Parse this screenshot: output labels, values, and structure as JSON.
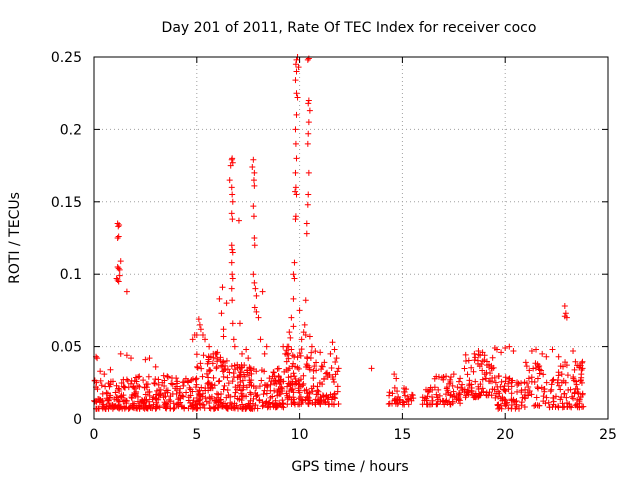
{
  "chart_data": {
    "type": "scatter",
    "title": "Day 201 of 2011, Rate Of TEC Index for receiver coco",
    "xlabel": "GPS time / hours",
    "ylabel": "ROTI / TECUs",
    "xlim": [
      0,
      25
    ],
    "ylim": [
      0,
      0.25
    ],
    "grid": true,
    "x_ticks": [
      0,
      5,
      10,
      15,
      20,
      25
    ],
    "x_tick_labels": [
      "0",
      "5",
      "10",
      "15",
      "20",
      "25"
    ],
    "y_ticks": [
      0,
      0.05,
      0.1,
      0.15,
      0.2,
      0.25
    ],
    "y_tick_labels": [
      "0",
      "0.05",
      "0.1",
      "0.15",
      "0.2",
      "0.25"
    ],
    "marker": "plus",
    "marker_color": "#ff0000",
    "dense_regions": [
      {
        "x_range": [
          0.0,
          1.5
        ],
        "y_range": [
          0.007,
          0.028
        ],
        "count": 90
      },
      {
        "x_range": [
          1.5,
          5.0
        ],
        "y_range": [
          0.007,
          0.03
        ],
        "count": 200
      },
      {
        "x_range": [
          5.0,
          6.5
        ],
        "y_range": [
          0.007,
          0.045
        ],
        "count": 120
      },
      {
        "x_range": [
          6.5,
          8.0
        ],
        "y_range": [
          0.007,
          0.04
        ],
        "count": 110
      },
      {
        "x_range": [
          8.0,
          9.3
        ],
        "y_range": [
          0.008,
          0.035
        ],
        "count": 80
      },
      {
        "x_range": [
          9.3,
          10.8
        ],
        "y_range": [
          0.01,
          0.05
        ],
        "count": 110
      },
      {
        "x_range": [
          10.8,
          11.9
        ],
        "y_range": [
          0.01,
          0.04
        ],
        "count": 60
      },
      {
        "x_range": [
          14.3,
          16.5
        ],
        "y_range": [
          0.01,
          0.022
        ],
        "count": 60
      },
      {
        "x_range": [
          16.5,
          18.0
        ],
        "y_range": [
          0.01,
          0.03
        ],
        "count": 60
      },
      {
        "x_range": [
          18.0,
          19.5
        ],
        "y_range": [
          0.015,
          0.045
        ],
        "count": 80
      },
      {
        "x_range": [
          19.5,
          21.0
        ],
        "y_range": [
          0.007,
          0.03
        ],
        "count": 70
      },
      {
        "x_range": [
          21.0,
          23.8
        ],
        "y_range": [
          0.008,
          0.04
        ],
        "count": 130
      }
    ],
    "points": [
      [
        0.1,
        0.043
      ],
      [
        0.15,
        0.042
      ],
      [
        0.3,
        0.033
      ],
      [
        0.5,
        0.031
      ],
      [
        0.8,
        0.034
      ],
      [
        1.15,
        0.135
      ],
      [
        1.18,
        0.133
      ],
      [
        1.2,
        0.126
      ],
      [
        1.22,
        0.134
      ],
      [
        1.15,
        0.125
      ],
      [
        1.15,
        0.105
      ],
      [
        1.2,
        0.104
      ],
      [
        1.25,
        0.103
      ],
      [
        1.3,
        0.109
      ],
      [
        1.1,
        0.097
      ],
      [
        1.15,
        0.096
      ],
      [
        1.2,
        0.095
      ],
      [
        1.25,
        0.099
      ],
      [
        1.6,
        0.088
      ],
      [
        1.3,
        0.045
      ],
      [
        1.6,
        0.044
      ],
      [
        1.8,
        0.042
      ],
      [
        2.5,
        0.041
      ],
      [
        2.7,
        0.042
      ],
      [
        3.0,
        0.036
      ],
      [
        4.8,
        0.055
      ],
      [
        4.9,
        0.058
      ],
      [
        5.0,
        0.058
      ],
      [
        5.1,
        0.069
      ],
      [
        5.15,
        0.065
      ],
      [
        5.2,
        0.062
      ],
      [
        5.3,
        0.058
      ],
      [
        5.4,
        0.055
      ],
      [
        5.6,
        0.05
      ],
      [
        5.8,
        0.045
      ],
      [
        6.0,
        0.046
      ],
      [
        6.1,
        0.083
      ],
      [
        6.2,
        0.073
      ],
      [
        6.25,
        0.091
      ],
      [
        6.3,
        0.062
      ],
      [
        6.45,
        0.08
      ],
      [
        6.3,
        0.057
      ],
      [
        6.6,
        0.165
      ],
      [
        6.65,
        0.175
      ],
      [
        6.7,
        0.179
      ],
      [
        6.72,
        0.18
      ],
      [
        6.75,
        0.177
      ],
      [
        6.7,
        0.16
      ],
      [
        6.72,
        0.155
      ],
      [
        6.75,
        0.15
      ],
      [
        6.7,
        0.142
      ],
      [
        6.73,
        0.138
      ],
      [
        6.7,
        0.12
      ],
      [
        6.72,
        0.117
      ],
      [
        6.75,
        0.115
      ],
      [
        6.7,
        0.108
      ],
      [
        6.72,
        0.1
      ],
      [
        6.75,
        0.097
      ],
      [
        6.7,
        0.09
      ],
      [
        6.72,
        0.082
      ],
      [
        6.75,
        0.066
      ],
      [
        6.8,
        0.055
      ],
      [
        6.85,
        0.05
      ],
      [
        7.05,
        0.137
      ],
      [
        7.1,
        0.066
      ],
      [
        7.2,
        0.045
      ],
      [
        7.4,
        0.048
      ],
      [
        7.5,
        0.042
      ],
      [
        7.7,
        0.174
      ],
      [
        7.75,
        0.179
      ],
      [
        7.8,
        0.17
      ],
      [
        7.78,
        0.165
      ],
      [
        7.8,
        0.161
      ],
      [
        7.75,
        0.147
      ],
      [
        7.78,
        0.14
      ],
      [
        7.8,
        0.125
      ],
      [
        7.82,
        0.12
      ],
      [
        7.75,
        0.1
      ],
      [
        7.8,
        0.094
      ],
      [
        7.85,
        0.09
      ],
      [
        7.9,
        0.085
      ],
      [
        7.82,
        0.077
      ],
      [
        7.9,
        0.074
      ],
      [
        8.0,
        0.07
      ],
      [
        8.1,
        0.055
      ],
      [
        8.2,
        0.088
      ],
      [
        8.3,
        0.045
      ],
      [
        8.4,
        0.05
      ],
      [
        9.2,
        0.05
      ],
      [
        9.3,
        0.045
      ],
      [
        9.4,
        0.05
      ],
      [
        9.5,
        0.06
      ],
      [
        9.55,
        0.056
      ],
      [
        9.6,
        0.048
      ],
      [
        9.7,
        0.064
      ],
      [
        9.6,
        0.07
      ],
      [
        9.7,
        0.083
      ],
      [
        9.75,
        0.097
      ],
      [
        9.7,
        0.1
      ],
      [
        9.75,
        0.108
      ],
      [
        9.8,
        0.138
      ],
      [
        9.82,
        0.14
      ],
      [
        9.85,
        0.155
      ],
      [
        9.78,
        0.157
      ],
      [
        9.82,
        0.16
      ],
      [
        9.8,
        0.17
      ],
      [
        9.85,
        0.18
      ],
      [
        9.82,
        0.19
      ],
      [
        9.8,
        0.2
      ],
      [
        9.85,
        0.21
      ],
      [
        9.9,
        0.222
      ],
      [
        9.85,
        0.225
      ],
      [
        9.8,
        0.234
      ],
      [
        9.82,
        0.245
      ],
      [
        9.85,
        0.248
      ],
      [
        9.9,
        0.25
      ],
      [
        9.95,
        0.243
      ],
      [
        9.85,
        0.24
      ],
      [
        10.0,
        0.075
      ],
      [
        10.1,
        0.055
      ],
      [
        10.2,
        0.06
      ],
      [
        10.25,
        0.065
      ],
      [
        10.3,
        0.058
      ],
      [
        10.3,
        0.082
      ],
      [
        10.35,
        0.128
      ],
      [
        10.35,
        0.135
      ],
      [
        10.4,
        0.148
      ],
      [
        10.42,
        0.155
      ],
      [
        10.45,
        0.17
      ],
      [
        10.4,
        0.19
      ],
      [
        10.42,
        0.197
      ],
      [
        10.45,
        0.205
      ],
      [
        10.5,
        0.213
      ],
      [
        10.42,
        0.218
      ],
      [
        10.45,
        0.22
      ],
      [
        10.4,
        0.248
      ],
      [
        10.45,
        0.249
      ],
      [
        10.5,
        0.057
      ],
      [
        10.6,
        0.05
      ],
      [
        11.0,
        0.046
      ],
      [
        11.5,
        0.045
      ],
      [
        11.6,
        0.053
      ],
      [
        11.7,
        0.048
      ],
      [
        11.8,
        0.042
      ],
      [
        11.9,
        0.035
      ],
      [
        13.5,
        0.035
      ],
      [
        14.6,
        0.031
      ],
      [
        14.7,
        0.028
      ],
      [
        17.0,
        0.029
      ],
      [
        17.5,
        0.031
      ],
      [
        18.5,
        0.045
      ],
      [
        18.7,
        0.047
      ],
      [
        18.9,
        0.046
      ],
      [
        19.0,
        0.044
      ],
      [
        19.5,
        0.049
      ],
      [
        19.6,
        0.048
      ],
      [
        19.8,
        0.046
      ],
      [
        20.0,
        0.049
      ],
      [
        20.2,
        0.05
      ],
      [
        20.4,
        0.047
      ],
      [
        21.3,
        0.047
      ],
      [
        21.5,
        0.048
      ],
      [
        21.8,
        0.045
      ],
      [
        22.0,
        0.043
      ],
      [
        22.3,
        0.048
      ],
      [
        22.6,
        0.043
      ],
      [
        22.9,
        0.078
      ],
      [
        22.95,
        0.073
      ],
      [
        23.0,
        0.07
      ],
      [
        22.9,
        0.071
      ],
      [
        23.3,
        0.047
      ],
      [
        23.5,
        0.037
      ],
      [
        23.7,
        0.031
      ]
    ]
  }
}
